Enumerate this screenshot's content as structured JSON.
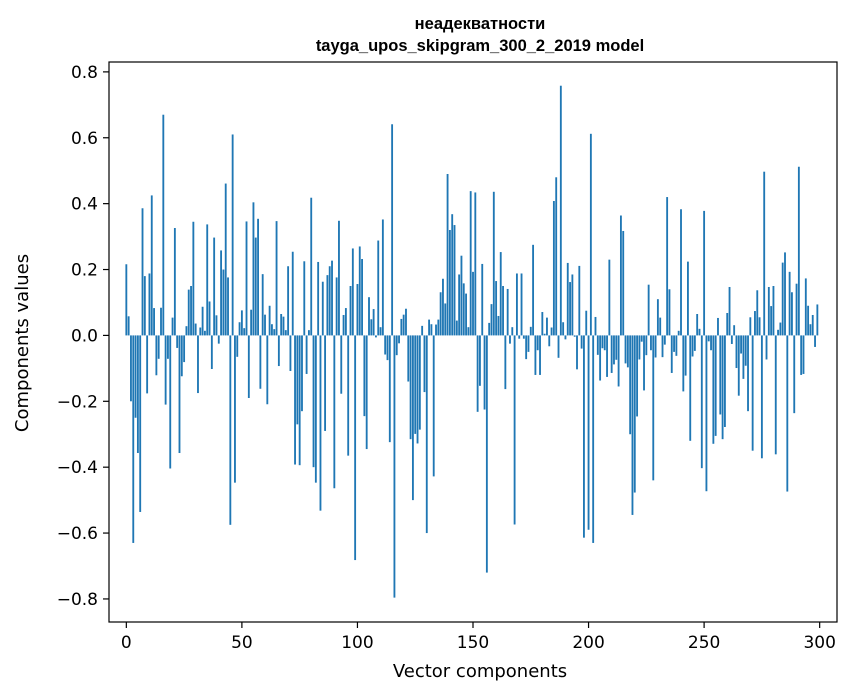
{
  "chart_data": {
    "type": "bar",
    "title": "неадекватности",
    "subtitle": "tayga_upos_skipgram_300_2_2019 model",
    "xlabel": "Vector components",
    "ylabel": "Components values",
    "xlim": [
      -7.5,
      307.5
    ],
    "ylim": [
      -0.87,
      0.83
    ],
    "xticks": [
      0,
      50,
      100,
      150,
      200,
      250,
      300
    ],
    "yticks": [
      -0.8,
      -0.6,
      -0.4,
      -0.2,
      0.0,
      0.2,
      0.4,
      0.6,
      0.8
    ],
    "ytick_labels": [
      "−0.8",
      "−0.6",
      "−0.4",
      "−0.2",
      "0.0",
      "0.2",
      "0.4",
      "0.6",
      "0.8"
    ],
    "bar_color": "#1f77b4",
    "values": [
      0.216,
      0.058,
      -0.2,
      -0.63,
      -0.25,
      -0.357,
      -0.536,
      0.386,
      0.18,
      -0.176,
      0.188,
      0.425,
      0.083,
      -0.121,
      -0.071,
      0.084,
      0.67,
      -0.21,
      -0.071,
      -0.404,
      0.054,
      0.326,
      -0.038,
      -0.357,
      -0.124,
      -0.081,
      0.028,
      0.139,
      0.15,
      0.345,
      0.036,
      -0.175,
      0.024,
      0.087,
      0.014,
      0.337,
      0.103,
      -0.102,
      0.297,
      0.061,
      -0.025,
      0.258,
      0.2,
      0.461,
      0.176,
      -0.575,
      0.61,
      -0.447,
      -0.065,
      0.04,
      0.076,
      0.022,
      0.346,
      -0.19,
      0.078,
      0.404,
      0.297,
      0.354,
      -0.162,
      0.186,
      0.063,
      -0.209,
      0.09,
      0.034,
      0.019,
      0.347,
      -0.093,
      0.065,
      0.057,
      0.016,
      0.21,
      -0.108,
      0.254,
      -0.392,
      -0.27,
      -0.394,
      -0.23,
      0.225,
      -0.117,
      0.016,
      0.418,
      -0.4,
      -0.447,
      0.223,
      -0.532,
      0.163,
      -0.29,
      0.183,
      0.21,
      0.227,
      -0.464,
      0.176,
      0.348,
      -0.177,
      0.062,
      0.083,
      -0.365,
      0.15,
      0.264,
      -0.682,
      0.156,
      0.27,
      0.232,
      -0.245,
      -0.345,
      0.116,
      0.049,
      0.08,
      -0.006,
      0.288,
      0.025,
      0.352,
      -0.058,
      -0.075,
      -0.324,
      0.641,
      -0.796,
      -0.06,
      -0.024,
      0.05,
      0.063,
      0.081,
      -0.14,
      -0.315,
      -0.5,
      -0.299,
      -0.328,
      -0.286,
      0.029,
      -0.172,
      -0.6,
      0.048,
      0.034,
      -0.428,
      0.033,
      0.048,
      0.131,
      0.172,
      0.097,
      0.49,
      0.32,
      0.368,
      0.335,
      0.045,
      0.185,
      0.242,
      0.158,
      0.127,
      0.025,
      0.438,
      0.193,
      0.434,
      -0.232,
      -0.153,
      0.217,
      -0.225,
      -0.72,
      0.038,
      0.095,
      0.436,
      0.165,
      0.059,
      0.253,
      0.15,
      -0.163,
      0.141,
      -0.025,
      0.025,
      -0.574,
      0.188,
      -0.01,
      0.188,
      -0.01,
      -0.072,
      -0.05,
      0.026,
      0.275,
      -0.12,
      -0.045,
      -0.12,
      0.071,
      0.005,
      0.054,
      -0.033,
      0.024,
      0.408,
      0.48,
      -0.068,
      0.758,
      0.04,
      -0.012,
      0.22,
      0.162,
      0.185,
      -0.004,
      -0.103,
      0.211,
      -0.04,
      -0.614,
      0.075,
      -0.59,
      0.612,
      -0.63,
      0.056,
      -0.059,
      -0.137,
      -0.039,
      -0.045,
      -0.126,
      0.23,
      -0.114,
      -0.088,
      -0.074,
      -0.155,
      0.364,
      0.317,
      -0.085,
      -0.097,
      -0.3,
      -0.545,
      -0.477,
      -0.246,
      -0.073,
      -0.019,
      -0.167,
      -0.06,
      0.154,
      -0.045,
      -0.44,
      -0.067,
      0.11,
      0.054,
      -0.066,
      -0.028,
      0.42,
      0.14,
      -0.114,
      -0.05,
      -0.062,
      0.014,
      0.383,
      -0.17,
      -0.122,
      0.224,
      -0.32,
      -0.064,
      -0.047,
      0.065,
      0.02,
      -0.403,
      0.378,
      -0.473,
      -0.018,
      -0.045,
      -0.329,
      -0.305,
      0.053,
      -0.24,
      -0.315,
      -0.278,
      0.068,
      0.147,
      -0.026,
      0.031,
      -0.099,
      -0.183,
      -0.055,
      -0.132,
      -0.092,
      -0.23,
      0.055,
      -0.35,
      0.074,
      0.137,
      0.055,
      -0.373,
      0.497,
      -0.073,
      0.147,
      0.089,
      0.15,
      -0.361,
      0.017,
      0.039,
      0.221,
      0.252,
      -0.474,
      0.193,
      0.131,
      -0.236,
      0.157,
      0.512,
      -0.12,
      -0.117,
      0.173,
      0.09,
      0.034,
      0.062,
      -0.035,
      0.094
    ]
  }
}
